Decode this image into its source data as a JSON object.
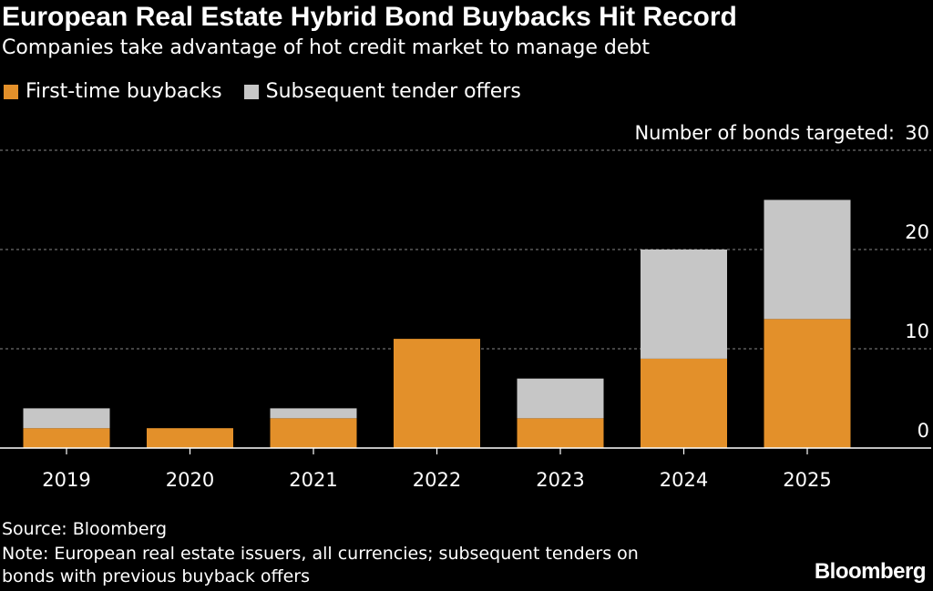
{
  "header": {
    "title": "European Real Estate Hybrid Bond Buybacks Hit Record",
    "subtitle": "Companies take advantage of hot credit market to manage debt"
  },
  "legend": {
    "first_label": "First-time buybacks",
    "subsequent_label": "Subsequent tender offers"
  },
  "colors": {
    "first": "#e3902a",
    "subsequent": "#c6c6c6",
    "grid": "#6e6e6e"
  },
  "footer": {
    "source": "Source: Bloomberg",
    "note_line1": "Note: European real estate issuers, all currencies; subsequent tenders on",
    "note_line2": "bonds with previous buyback offers",
    "logo": "Bloomberg"
  },
  "chart_data": {
    "type": "bar",
    "stacked": true,
    "title": "European Real Estate Hybrid Bond Buybacks Hit Record",
    "ylabel": "Number of bonds targeted:",
    "categories": [
      "2019",
      "2020",
      "2021",
      "2022",
      "2023",
      "2024",
      "2025"
    ],
    "series": [
      {
        "name": "First-time buybacks",
        "values": [
          2,
          2,
          3,
          11,
          3,
          9,
          13
        ]
      },
      {
        "name": "Subsequent tender offers",
        "values": [
          2,
          0,
          1,
          0,
          4,
          11,
          12
        ]
      }
    ],
    "ylim": [
      0,
      30
    ],
    "yticks": [
      0,
      10,
      20,
      30
    ],
    "grid": true,
    "legend_position": "top-left"
  }
}
